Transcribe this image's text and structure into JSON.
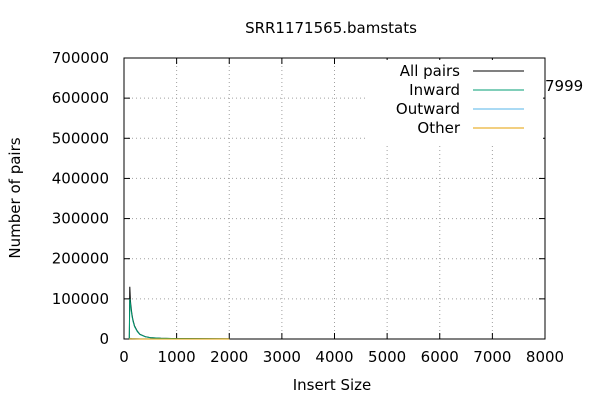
{
  "chart_data": {
    "type": "line",
    "title": "SRR1171565.bamstats",
    "xlabel": "Insert Size",
    "ylabel": "Number of pairs",
    "xlim": [
      0,
      8000
    ],
    "ylim": [
      0,
      700000
    ],
    "xticks": [
      0,
      1000,
      2000,
      3000,
      4000,
      5000,
      6000,
      7000,
      8000
    ],
    "yticks": [
      0,
      100000,
      200000,
      300000,
      400000,
      500000,
      600000,
      700000
    ],
    "grid": true,
    "legend_position": "top-right",
    "side_annotation": "7999",
    "series": [
      {
        "name": "All pairs",
        "color": "#000000",
        "x": [
          100,
          110,
          120,
          130,
          150,
          170,
          200,
          250,
          300,
          400,
          500,
          700,
          1000,
          1500,
          2000
        ],
        "y": [
          0,
          130000,
          100000,
          85000,
          62000,
          48000,
          33000,
          20000,
          12000,
          6000,
          3500,
          2000,
          1000,
          500,
          200
        ]
      },
      {
        "name": "Inward",
        "color": "#009e73",
        "x": [
          100,
          110,
          120,
          130,
          150,
          170,
          200,
          250,
          300,
          400,
          500,
          700,
          1000,
          1500,
          2000
        ],
        "y": [
          0,
          100000,
          90000,
          78000,
          58000,
          45000,
          31000,
          19000,
          11500,
          5800,
          3300,
          1900,
          950,
          480,
          190
        ]
      },
      {
        "name": "Outward",
        "color": "#56b4e9",
        "x": [
          100,
          120,
          150,
          200,
          300,
          500,
          1000,
          2000
        ],
        "y": [
          0,
          1500,
          1200,
          900,
          500,
          250,
          100,
          30
        ]
      },
      {
        "name": "Other",
        "color": "#e69f00",
        "x": [
          100,
          120,
          150,
          200,
          300,
          500,
          1000,
          2000
        ],
        "y": [
          0,
          400,
          300,
          200,
          120,
          60,
          20,
          5
        ]
      }
    ]
  }
}
